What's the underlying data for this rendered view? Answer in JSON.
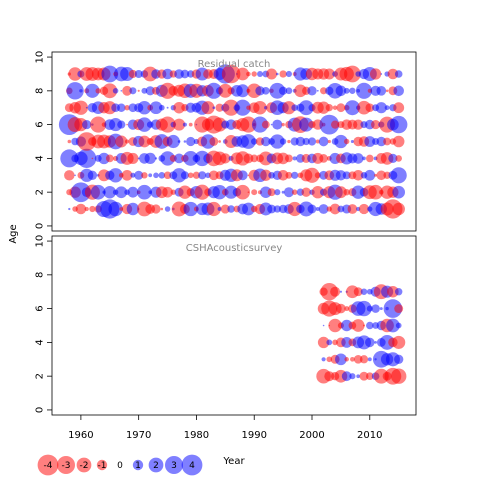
{
  "chart_data": {
    "type": "scatter",
    "subtype": "bubble",
    "shared_x": {
      "label": "Year",
      "lim": [
        1955,
        2018
      ],
      "ticks": [
        1960,
        1970,
        1980,
        1990,
        2000,
        2010
      ]
    },
    "shared_y_label": "Age",
    "colors": {
      "positive": "#0000ff",
      "negative": "#ff0000",
      "fill_alpha": 0.5
    },
    "legend": {
      "placement": "bottom-left",
      "values": [
        -4,
        -3,
        -2,
        -1,
        0,
        1,
        2,
        3,
        4
      ],
      "labels": [
        "-4",
        "-3",
        "-2",
        "-1",
        "0",
        "1",
        "2",
        "3",
        "4"
      ]
    },
    "panels": [
      {
        "title": "Residual catch",
        "ylim": [
          -0.3,
          10.3
        ],
        "yticks": [
          0,
          2,
          4,
          6,
          8,
          10
        ],
        "years": [
          1958,
          2015
        ],
        "ages": [
          1,
          2,
          3,
          4,
          5,
          6,
          7,
          8,
          9
        ],
        "seed": 17,
        "scale": 1.0,
        "notable": [
          {
            "year": 1958,
            "age": 6,
            "value": 4.0
          },
          {
            "year": 1958,
            "age": 4,
            "value": 3.0
          },
          {
            "year": 1959,
            "age": 8,
            "value": 2.8
          },
          {
            "year": 1960,
            "age": 2,
            "value": 3.6
          },
          {
            "year": 1961,
            "age": 4,
            "value": 3.4
          },
          {
            "year": 1961,
            "age": 5,
            "value": -3.2
          },
          {
            "year": 1965,
            "age": 1,
            "value": 3.4
          },
          {
            "year": 1965,
            "age": 9,
            "value": 2.6
          },
          {
            "year": 1983,
            "age": 6,
            "value": -3.0
          },
          {
            "year": 1985,
            "age": 9,
            "value": 3.4
          },
          {
            "year": 1986,
            "age": 9,
            "value": -3.2
          },
          {
            "year": 1998,
            "age": 6,
            "value": -2.6
          },
          {
            "year": 2003,
            "age": 6,
            "value": 3.6
          },
          {
            "year": 2007,
            "age": 9,
            "value": -2.6
          },
          {
            "year": 2014,
            "age": 1,
            "value": -3.4
          },
          {
            "year": 2015,
            "age": 6,
            "value": 2.8
          },
          {
            "year": 2015,
            "age": 3,
            "value": 2.4
          }
        ]
      },
      {
        "title": "CSHAcousticsurvey",
        "ylim": [
          -0.3,
          10.3
        ],
        "yticks": [
          0,
          2,
          4,
          6,
          8,
          10
        ],
        "years": [
          2002,
          2015
        ],
        "ages": [
          2,
          3,
          4,
          5,
          6,
          7
        ],
        "seed": 53,
        "scale": 0.85,
        "notable": [
          {
            "year": 2003,
            "age": 7,
            "value": -2.8
          },
          {
            "year": 2003,
            "age": 6,
            "value": -2.4
          },
          {
            "year": 2012,
            "age": 3,
            "value": 2.6
          },
          {
            "year": 2014,
            "age": 6,
            "value": 3.2
          },
          {
            "year": 2014,
            "age": 2,
            "value": -2.6
          },
          {
            "year": 2015,
            "age": 2,
            "value": -2.2
          },
          {
            "year": 2009,
            "age": 6,
            "value": 2.2
          }
        ]
      }
    ]
  }
}
